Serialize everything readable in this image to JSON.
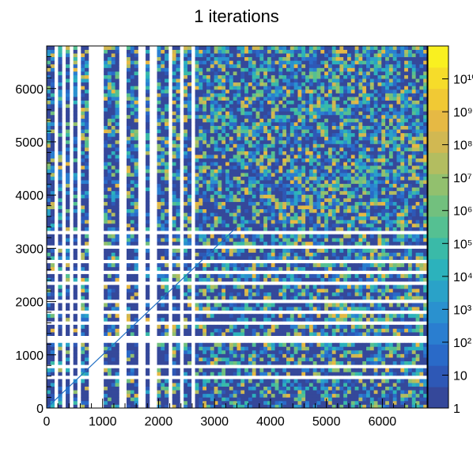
{
  "chart_data": {
    "type": "heatmap",
    "title": "1 iterations",
    "xlabel": "",
    "ylabel": "",
    "xlim": [
      0,
      6800
    ],
    "ylim": [
      0,
      6800
    ],
    "x_ticks": [
      0,
      1000,
      2000,
      3000,
      4000,
      5000,
      6000
    ],
    "y_ticks": [
      0,
      1000,
      2000,
      3000,
      4000,
      5000,
      6000
    ],
    "z_scale": "log",
    "z_range": [
      1,
      100000000000
    ],
    "z_ticks": [
      {
        "value": 1,
        "label": "1"
      },
      {
        "value": 10,
        "label": "10"
      },
      {
        "value": 100,
        "label": "10²"
      },
      {
        "value": 1000,
        "label": "10³"
      },
      {
        "value": 10000,
        "label": "10⁴"
      },
      {
        "value": 100000,
        "label": "10⁵"
      },
      {
        "value": 1000000,
        "label": "10⁶"
      },
      {
        "value": 10000000,
        "label": "10⁷"
      },
      {
        "value": 100000000,
        "label": "10⁸"
      },
      {
        "value": 1000000000,
        "label": "10⁹"
      },
      {
        "value": 10000000000,
        "label": "10¹⁰"
      }
    ],
    "palette": [
      "#35489a",
      "#2e58b6",
      "#2a6ac8",
      "#2a7ed0",
      "#2a91cf",
      "#2aa2c8",
      "#2cb2bc",
      "#3abaa8",
      "#55c092",
      "#72c07e",
      "#92c06e",
      "#b3bd60",
      "#d1b852",
      "#e6b944",
      "#f1c934",
      "#f6dc2a",
      "#f9f020"
    ],
    "empty_x_bands": [
      [
        150,
        200
      ],
      [
        260,
        320
      ],
      [
        420,
        460
      ],
      [
        560,
        620
      ],
      [
        740,
        1000
      ],
      [
        1260,
        1430
      ],
      [
        1640,
        1760
      ],
      [
        1860,
        1960
      ],
      [
        2180,
        2250
      ],
      [
        2380,
        2430
      ],
      [
        2560,
        2620
      ],
      [
        2690,
        2740
      ],
      [
        2850,
        2880
      ],
      [
        3060,
        3090
      ],
      [
        3400,
        3420
      ],
      [
        3720,
        3740
      ],
      [
        4280,
        4300
      ]
    ],
    "empty_y_bands": [
      [
        180,
        230
      ],
      [
        400,
        440
      ],
      [
        560,
        620
      ],
      [
        760,
        830
      ],
      [
        1240,
        1370
      ],
      [
        1560,
        1620
      ],
      [
        1760,
        1850
      ],
      [
        2000,
        2060
      ],
      [
        2280,
        2360
      ],
      [
        2520,
        2580
      ],
      [
        2720,
        2820
      ],
      [
        3000,
        3040
      ],
      [
        3280,
        3320
      ],
      [
        3370,
        3400
      ],
      [
        3600,
        3620
      ],
      [
        3780,
        3800
      ]
    ],
    "diagonal": {
      "from": 0,
      "to": 3400,
      "color": "#1f6fc4"
    }
  }
}
